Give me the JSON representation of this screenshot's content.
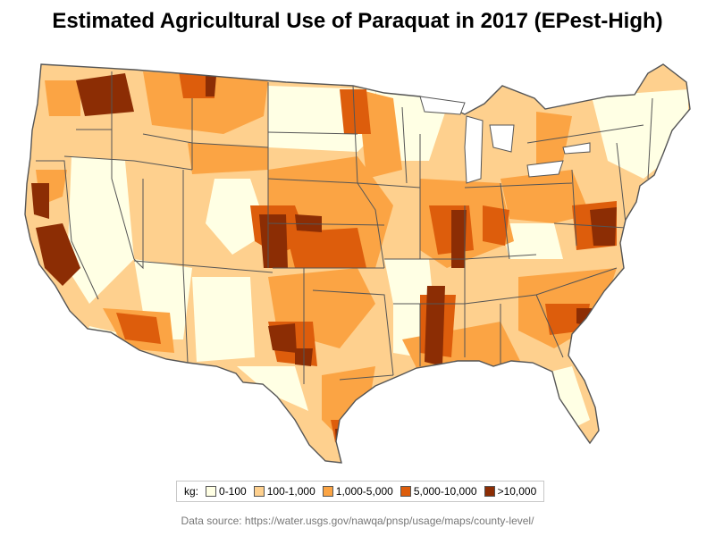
{
  "title": "Estimated Agricultural Use of Paraquat in 2017 (EPest-High)",
  "legend": {
    "label": "kg:",
    "items": [
      {
        "label": "0-100",
        "color": "#ffffe4"
      },
      {
        "label": "100-1,000",
        "color": "#fed08e"
      },
      {
        "label": "1,000-5,000",
        "color": "#fba444"
      },
      {
        "label": "5,000-10,000",
        "color": "#dd5d0c"
      },
      {
        "label": ">10,000",
        "color": "#8c2d04"
      }
    ]
  },
  "source": "Data source: https://water.usgs.gov/nawqa/pnsp/usage/maps/county-level/"
}
